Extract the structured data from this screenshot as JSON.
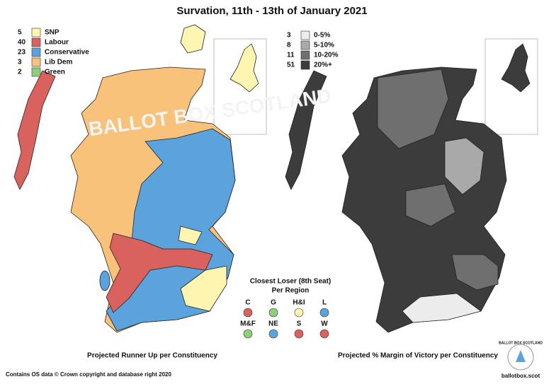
{
  "title": "Survation, 11th - 13th of January 2021",
  "left_legend": [
    {
      "count": 5,
      "label": "SNP",
      "color": "#fdf5b0"
    },
    {
      "count": 40,
      "label": "Labour",
      "color": "#d9625e"
    },
    {
      "count": 23,
      "label": "Conservative",
      "color": "#5ba3dc"
    },
    {
      "count": 3,
      "label": "Lib Dem",
      "color": "#f8c27a"
    },
    {
      "count": 2,
      "label": "Green",
      "color": "#8fcf7b"
    }
  ],
  "right_legend": [
    {
      "count": 3,
      "label": "0-5%",
      "color": "#ececec"
    },
    {
      "count": 8,
      "label": "5-10%",
      "color": "#a9a9a9"
    },
    {
      "count": 11,
      "label": "10-20%",
      "color": "#6f6f6f"
    },
    {
      "count": 51,
      "label": "20%+",
      "color": "#3c3c3c"
    }
  ],
  "closest_loser": {
    "title_line1": "Closest Loser (8th Seat)",
    "title_line2": "Per Region",
    "regions": [
      {
        "code": "C",
        "color": "#d9625e"
      },
      {
        "code": "G",
        "color": "#8fcf7b"
      },
      {
        "code": "H&I",
        "color": "#fdf5b0"
      },
      {
        "code": "L",
        "color": "#5ba3dc"
      },
      {
        "code": "M&F",
        "color": "#8fcf7b"
      },
      {
        "code": "NE",
        "color": "#5ba3dc"
      },
      {
        "code": "S",
        "color": "#d9625e"
      },
      {
        "code": "W",
        "color": "#d9625e"
      }
    ]
  },
  "left_caption": "Projected Runner Up per Constituency",
  "right_caption": "Projected % Margin of Victory per Constituency",
  "footer": "Contains OS data © Crown copyright and database right 2020",
  "logo_text": "BALLOT BOX SCOTLAND",
  "logo_url": "ballotbox.scot"
}
